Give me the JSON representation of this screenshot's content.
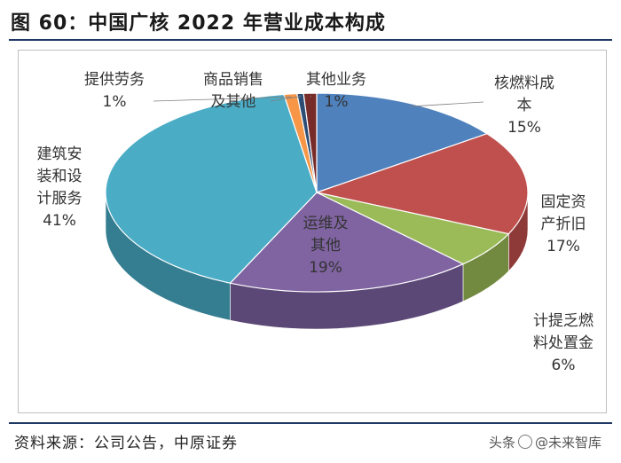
{
  "figure": {
    "title": "图 60：中国广核 2022 年营业成本构成",
    "source": "资料来源：公司公告，中原证券",
    "watermark_left": "头条",
    "watermark_right": "@未来智库"
  },
  "chart_data": {
    "type": "pie",
    "title": "中国广核 2022 年营业成本构成",
    "start": "12 o'clock, clockwise",
    "style": "3d",
    "slices": [
      {
        "label": "核燃料成本",
        "value": 15,
        "display": "15%",
        "color": "#4f81bd",
        "side": "#3a6496",
        "label_lines": [
          "核燃料成",
          "本",
          "15%"
        ]
      },
      {
        "label": "固定资产折旧",
        "value": 17,
        "display": "17%",
        "color": "#c0504d",
        "side": "#8e3a38",
        "label_lines": [
          "固定资",
          "产折旧",
          "17%"
        ]
      },
      {
        "label": "计提乏燃料处置金",
        "value": 6,
        "display": "6%",
        "color": "#9bbb59",
        "side": "#728a40",
        "label_lines": [
          "计提乏燃",
          "料处置金",
          "6%"
        ]
      },
      {
        "label": "运维及其他",
        "value": 19,
        "display": "19%",
        "color": "#8064a2",
        "side": "#5c4876",
        "label_lines": [
          "运维及",
          "其他",
          "19%"
        ]
      },
      {
        "label": "建筑安装和设计服务",
        "value": 41,
        "display": "41%",
        "color": "#4bacc6",
        "side": "#357d90",
        "label_lines": [
          "建筑安",
          "装和设",
          "计服务",
          "41%"
        ]
      },
      {
        "label": "提供劳务",
        "value": 1,
        "display": "1%",
        "color": "#f79646",
        "side": "#b86d31",
        "label_lines": [
          "提供劳务",
          "1%"
        ]
      },
      {
        "label": "商品销售及其他",
        "value": 0.5,
        "display": "",
        "color": "#2c4d75",
        "side": "#1f3753",
        "label_lines": [
          "商品销售",
          "及其他"
        ]
      },
      {
        "label": "其他业务",
        "value": 1,
        "display": "1%",
        "color": "#772c2a",
        "side": "#55201e",
        "label_lines": [
          "其他业务",
          "1%"
        ]
      }
    ]
  }
}
